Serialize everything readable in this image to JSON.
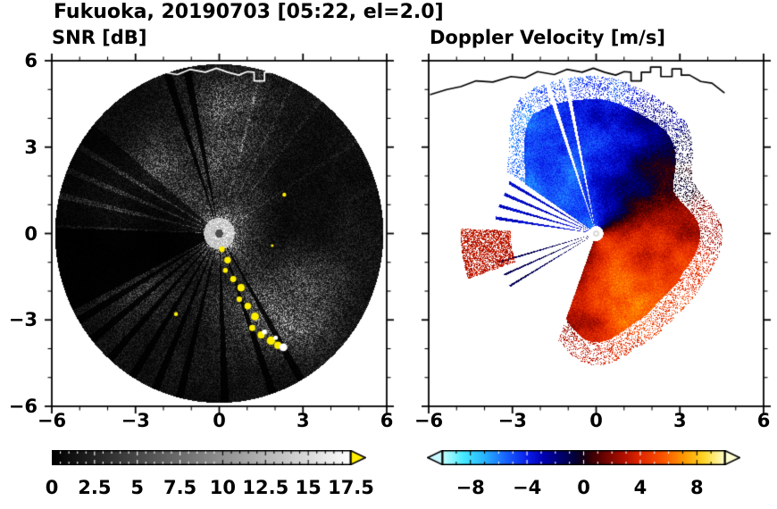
{
  "figure": {
    "title": "Fukuoka, 20190703 [05:22, el=2.0]",
    "station": "Fukuoka",
    "date": "20190703",
    "time": "05:22",
    "elevation_deg": 2.0
  },
  "axes": {
    "xlim": [
      -6,
      6
    ],
    "ylim": [
      -6,
      6
    ],
    "xtick_values": [
      -6,
      -3,
      0,
      3,
      6
    ],
    "xtick_labels": [
      "−6",
      "−3",
      "0",
      "3",
      "6"
    ],
    "ytick_values": [
      -6,
      -3,
      0,
      3,
      6
    ],
    "ytick_labels": [
      "−6",
      "−3",
      "0",
      "3",
      "6"
    ],
    "minor_tick_step": 1
  },
  "chart_data": [
    {
      "type": "radar_ppi_heatmap",
      "title": "SNR [dB]",
      "units": "dB",
      "xlim": [
        -6,
        6
      ],
      "ylim": [
        -6,
        6
      ],
      "disc_radius": 5.88,
      "colorbar": {
        "type": "grayscale",
        "min": 0,
        "max": 17.5,
        "tick_values": [
          0,
          2.5,
          5,
          7.5,
          10,
          12.5,
          15,
          17.5
        ],
        "tick_labels": [
          "0",
          "2.5",
          "5",
          "7.5",
          "10",
          "12.5",
          "15",
          "17.5"
        ],
        "minor_step": 0.5,
        "over_arrow_color": "#ffee00"
      },
      "shadow_sectors": [
        [
          178,
          207,
          0.08
        ],
        [
          140,
          177,
          0.35
        ]
      ],
      "shadow_ray_azimuths": [
        101.5,
        108.5,
        211,
        219,
        228,
        238,
        247,
        256,
        272,
        289,
        300
      ],
      "bright_ray_azimuths": [
        149,
        158,
        167
      ],
      "faint_ray_azimuths": [
        33,
        52,
        63,
        75
      ],
      "clutter_color": "#ffee00",
      "clutter_arc": [
        [
          0.1,
          -0.55,
          0.1
        ],
        [
          0.3,
          -0.92,
          0.12
        ],
        [
          0.22,
          -1.28,
          0.09
        ],
        [
          0.5,
          -1.58,
          0.11
        ],
        [
          0.78,
          -1.88,
          0.13
        ],
        [
          0.72,
          -2.28,
          0.1
        ],
        [
          1.02,
          -2.52,
          0.12
        ],
        [
          1.28,
          -2.88,
          0.14
        ],
        [
          1.18,
          -3.28,
          0.11
        ],
        [
          1.5,
          -3.52,
          0.13
        ],
        [
          1.85,
          -3.72,
          0.15
        ],
        [
          2.1,
          -3.88,
          0.13
        ],
        [
          -1.55,
          -2.8,
          0.07
        ],
        [
          2.33,
          1.35,
          0.07
        ],
        [
          1.9,
          -0.42,
          0.05
        ]
      ],
      "white_blobs": [
        [
          2.3,
          -3.95,
          0.14
        ],
        [
          1.62,
          -3.42,
          0.09
        ],
        [
          2.02,
          -3.62,
          0.08
        ]
      ]
    },
    {
      "type": "radar_ppi_heatmap",
      "title": "Doppler Velocity [m/s]",
      "units": "m/s",
      "xlim": [
        -6,
        6
      ],
      "ylim": [
        -6,
        6
      ],
      "colorbar": {
        "type": "doppler",
        "min": -10,
        "max": 10,
        "tick_values": [
          -8,
          -4,
          0,
          4,
          8
        ],
        "tick_labels": [
          "−8",
          "−4",
          "0",
          "4",
          "8"
        ],
        "minor_step": 1,
        "under_arrow_color": "#c8f8ff",
        "over_arrow_color": "#ffffd2"
      },
      "max_abs_velocity_ms": 5.2,
      "zero_isodop_azimuths_deg": [
        38,
        218
      ],
      "west_gap_deg": [
        146,
        250
      ],
      "blue_ray_azimuths": [
        150.5,
        157.5,
        164.5,
        171.5
      ],
      "navy_ray_azimuths": [
        196,
        203.5,
        210.5
      ],
      "white_slit_azimuths": [
        [
          101.5,
          0.8
        ],
        [
          108.5,
          0.9
        ]
      ],
      "west_clutter_patch": {
        "azimuth_deg": [
          178,
          199
        ],
        "range": [
          3.05,
          4.85
        ]
      }
    }
  ],
  "coastline": [
    [
      -5.95,
      4.82
    ],
    [
      -5.35,
      5.0
    ],
    [
      -4.85,
      5.1
    ],
    [
      -4.3,
      5.3
    ],
    [
      -3.7,
      5.26
    ],
    [
      -3.05,
      5.45
    ],
    [
      -2.55,
      5.4
    ],
    [
      -2.1,
      5.62
    ],
    [
      -1.5,
      5.52
    ],
    [
      -1.05,
      5.7
    ],
    [
      -0.5,
      5.6
    ],
    [
      -0.1,
      5.74
    ],
    [
      0.3,
      5.6
    ],
    [
      0.7,
      5.5
    ],
    [
      1.0,
      5.62
    ],
    [
      1.25,
      5.6
    ],
    [
      1.25,
      5.3
    ],
    [
      1.62,
      5.3
    ],
    [
      1.62,
      5.6
    ],
    [
      1.95,
      5.6
    ],
    [
      1.95,
      5.78
    ],
    [
      2.32,
      5.78
    ],
    [
      2.32,
      5.45
    ],
    [
      2.72,
      5.45
    ],
    [
      2.72,
      5.72
    ],
    [
      3.05,
      5.72
    ],
    [
      3.05,
      5.5
    ],
    [
      3.35,
      5.5
    ],
    [
      3.75,
      5.28
    ],
    [
      4.15,
      5.22
    ],
    [
      4.6,
      4.88
    ]
  ]
}
